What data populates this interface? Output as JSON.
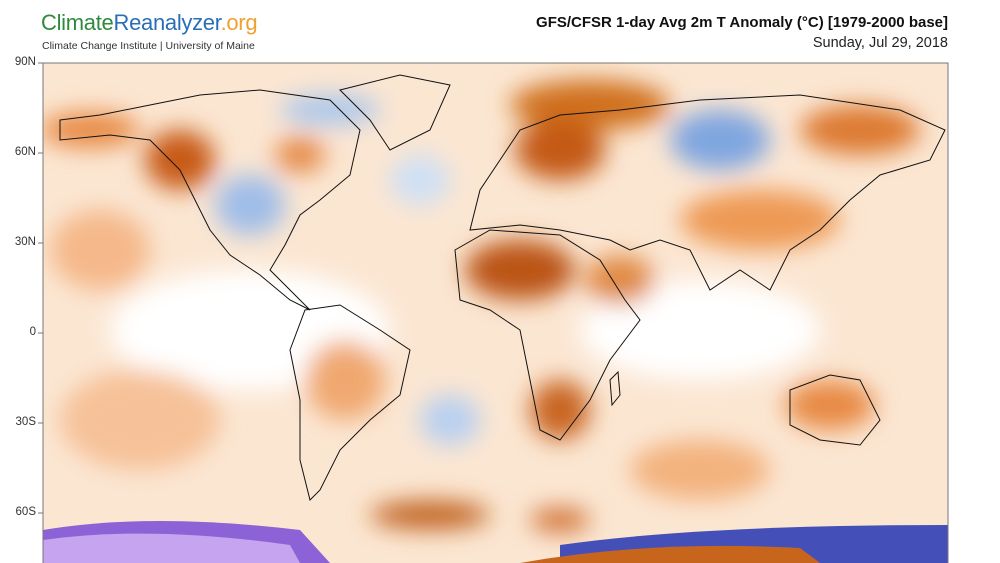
{
  "logo": {
    "part1": "Climate",
    "part2": "Reanalyzer",
    "part3": ".org"
  },
  "subtitle": "Climate Change Institute | University of Maine",
  "title": "GFS/CFSR 1-day Avg 2m T Anomaly (°C) [1979-2000 base]",
  "date": "Sunday, Jul 29, 2018",
  "lat_ticks": [
    "90N",
    "60N",
    "30N",
    "0",
    "30S",
    "60S"
  ],
  "colors": {
    "warm": "#d2691e",
    "warm_light": "#f8cfa8",
    "cold": "#5b8fd6",
    "cold_extreme": "#8a5cd8"
  }
}
